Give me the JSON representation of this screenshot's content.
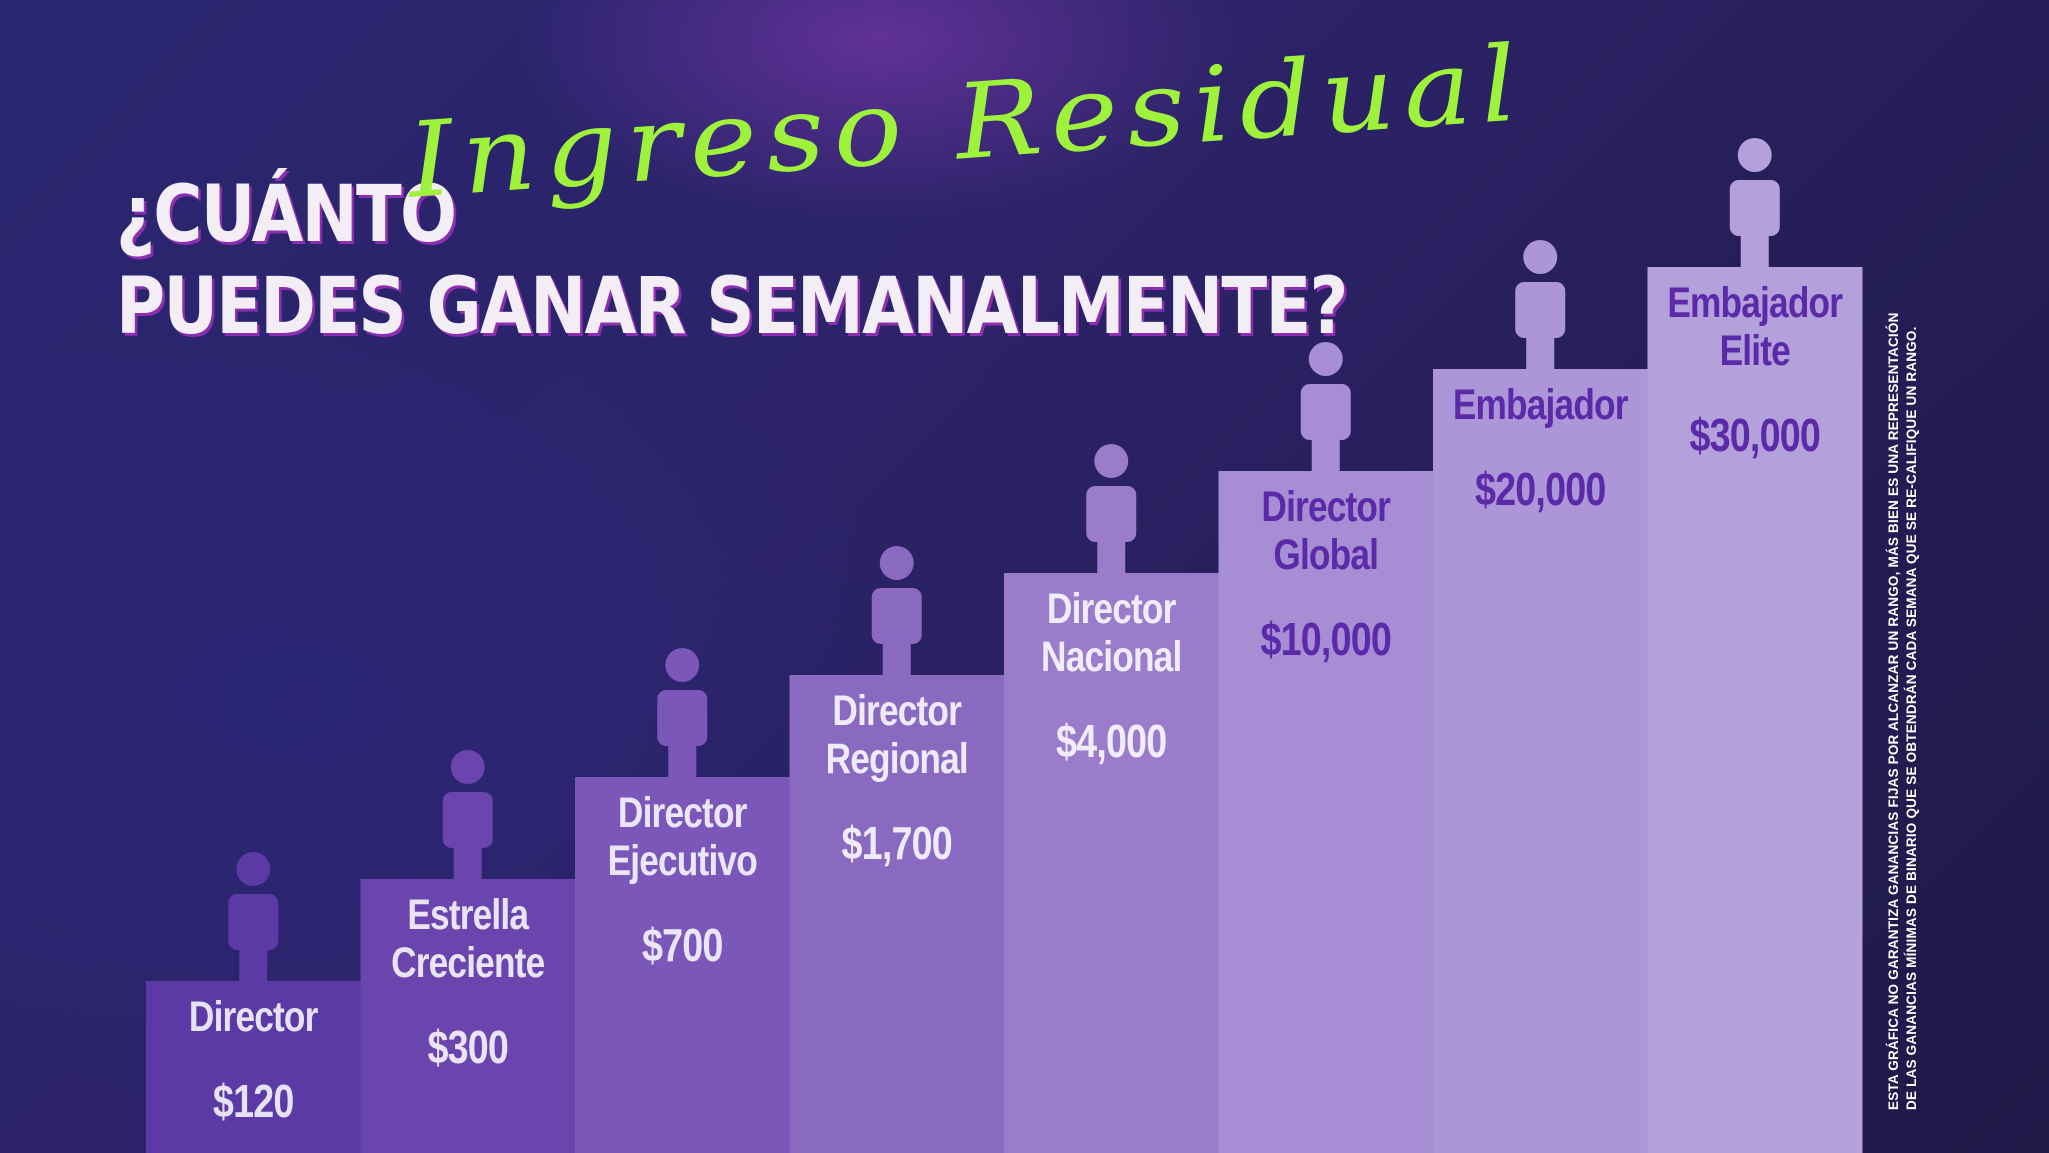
{
  "title": {
    "line1": "¿CUÁNTO",
    "script": "Ingreso Residual",
    "line2": "PUEDES GANAR SEMANALMENTE?"
  },
  "chart_data": {
    "type": "bar",
    "categories": [
      "Director",
      "Estrella Creciente",
      "Director Ejecutivo",
      "Director Regional",
      "Director Nacional",
      "Director Global",
      "Embajador",
      "Embajador Elite"
    ],
    "label_lines": [
      [
        "Director"
      ],
      [
        "Estrella",
        "Creciente"
      ],
      [
        "Director",
        "Ejecutivo"
      ],
      [
        "Director",
        "Regional"
      ],
      [
        "Director",
        "Nacional"
      ],
      [
        "Director",
        "Global"
      ],
      [
        "Embajador"
      ],
      [
        "Embajador",
        "Elite"
      ]
    ],
    "value_labels": [
      "$120",
      "$300",
      "$700",
      "$1,700",
      "$4,000",
      "$10,000",
      "$20,000",
      "$30,000"
    ],
    "values": [
      120,
      300,
      700,
      1700,
      4000,
      10000,
      20000,
      30000
    ],
    "colors": {
      "bars": [
        "#5c3aa5",
        "#6a45ad",
        "#7a57b8",
        "#8a69c1",
        "#9a7ccb",
        "#a78dd3",
        "#ad96d7",
        "#b4a0db"
      ],
      "figures": [
        "#5c3aa5",
        "#6a45ad",
        "#7a57b8",
        "#8a69c1",
        "#9a7ccb",
        "#a78dd3",
        "#ad96d7",
        "#b4a0db"
      ],
      "text": [
        "#e7e1f4",
        "#e9e3f5",
        "#ebe6f7",
        "#eeeaf8",
        "#f0ecfa",
        "#5a2aa8",
        "#5a2aa8",
        "#5a2aa8"
      ]
    },
    "figure_icon": "person-icon"
  },
  "disclaimer": {
    "line1": "ESTA GRÁFICA NO GARANTIZA GANANCIAS FIJAS POR ALCANZAR UN RANGO, MÁS BIEN ES UNA REPRESENTACIÓN",
    "line2": "DE LAS GANANCIAS MÍNIMAS DE BINARIO QUE SE OBTENDRÁN CADA SEMANA QUE SE RE-CALIFIQUE UN RANGO."
  }
}
